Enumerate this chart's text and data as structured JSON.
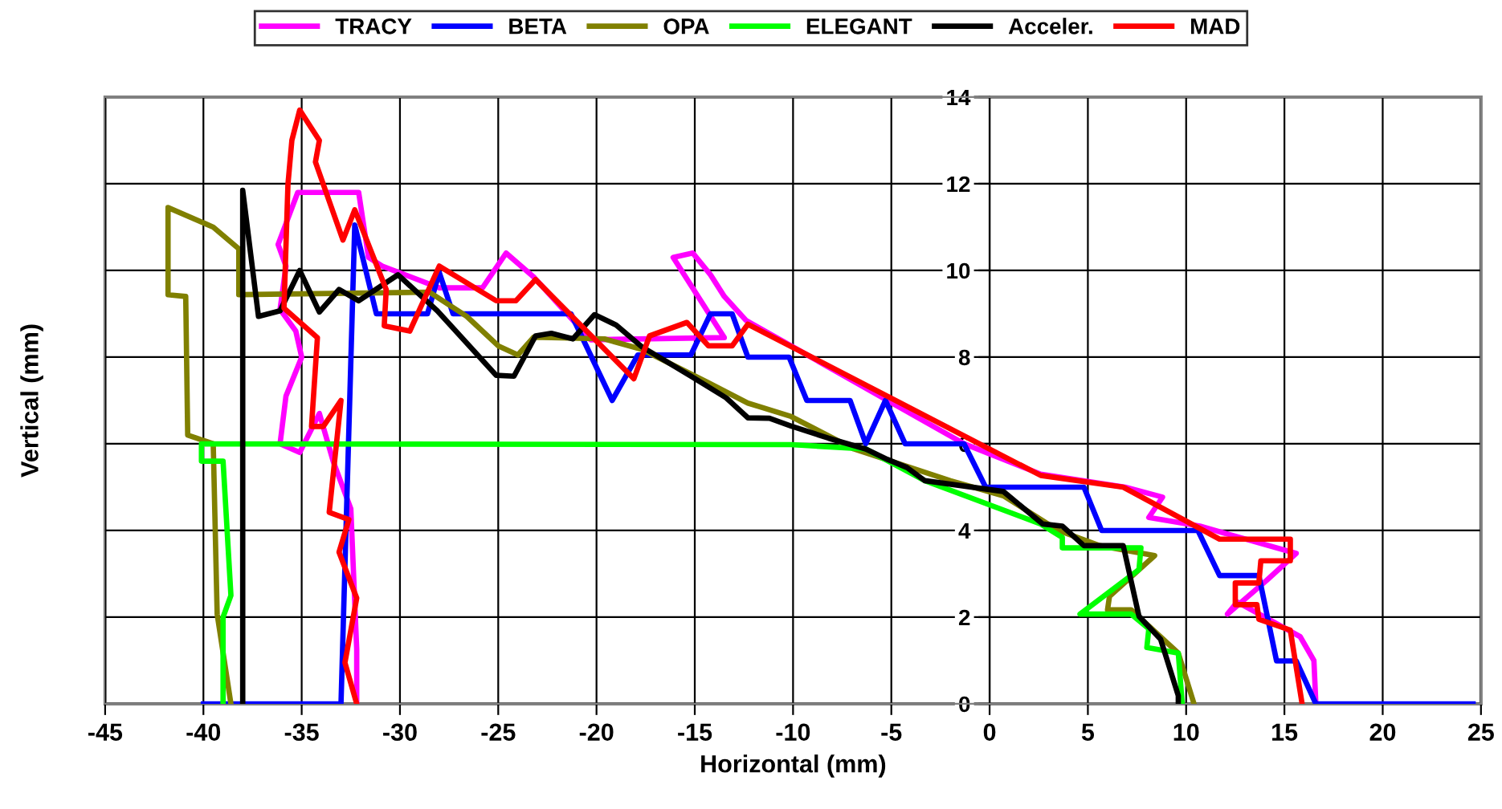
{
  "chart_data": {
    "type": "line",
    "xlabel": "Horizontal (mm)",
    "ylabel": "Vertical (mm)",
    "xlim": [
      -45,
      25
    ],
    "xticks": [
      -45,
      -40,
      -35,
      -30,
      -25,
      -20,
      -15,
      -10,
      -5,
      0,
      5,
      10,
      15,
      20,
      25
    ],
    "ylim": [
      0,
      14
    ],
    "yticks": [
      0,
      2,
      4,
      6,
      8,
      10,
      12,
      14
    ],
    "grid": true,
    "legend": "top",
    "marker": "none",
    "line_style": "solid",
    "series": [
      {
        "name": "TRACY",
        "color": "#ff00ff",
        "x": [
          -32.2,
          -32.2,
          -32.5,
          -33.4,
          -34.1,
          -35.1,
          -36.1,
          -35.8,
          -35.0,
          -35.3,
          -36.1,
          -35.8,
          -36.2,
          -35.2,
          -32.1,
          -31.6,
          -30.9,
          -28.0,
          -25.8,
          -24.6,
          -23.2,
          -20.3,
          -13.5,
          -16.1,
          -15.1,
          -14.2,
          -13.5,
          -12.4,
          -1.3,
          2.6,
          6.9,
          8.8,
          8.1,
          10.7,
          15.6,
          14.1,
          12.1,
          12.6,
          15.8,
          16.5,
          16.6
        ],
        "values": [
          0,
          1.26,
          4.5,
          5.6,
          6.7,
          5.8,
          6.0,
          7.1,
          8.0,
          8.6,
          9.1,
          10.1,
          10.6,
          11.8,
          11.8,
          10.3,
          10.1,
          9.6,
          9.6,
          10.4,
          9.85,
          8.4,
          8.45,
          10.3,
          10.4,
          9.9,
          9.4,
          8.85,
          6.0,
          5.3,
          5.0,
          4.77,
          4.3,
          4.1,
          3.47,
          2.85,
          2.07,
          2.35,
          1.55,
          1.0,
          0
        ]
      },
      {
        "name": "BETA",
        "color": "#0000ff",
        "x": [
          -40.0,
          -33.0,
          -32.3,
          -31.2,
          -28.6,
          -28.0,
          -27.3,
          -21.3,
          -19.2,
          -17.9,
          -15.2,
          -14.2,
          -13.1,
          -12.3,
          -10.2,
          -9.3,
          -7.1,
          -6.3,
          -5.3,
          -4.3,
          -1.3,
          -0.2,
          4.8,
          5.7,
          10.6,
          11.7,
          13.7,
          14.6,
          15.6,
          16.6,
          24.6
        ],
        "values": [
          0,
          0,
          11.05,
          9.0,
          9.0,
          9.95,
          9.0,
          9.0,
          7.0,
          8.05,
          8.05,
          9.0,
          9.0,
          8.0,
          8.0,
          7.0,
          7.0,
          6.0,
          7.0,
          6.0,
          6.0,
          5.0,
          5.0,
          4.0,
          4.0,
          2.96,
          2.96,
          0.99,
          0.99,
          0,
          0
        ]
      },
      {
        "name": "OPA",
        "color": "#808000",
        "x": [
          -38.6,
          -39.3,
          -39.5,
          -40.8,
          -40.9,
          -41.8,
          -41.8,
          -39.5,
          -38.2,
          -38.2,
          -28.5,
          -26.6,
          -25.0,
          -24.0,
          -23.2,
          -19.6,
          -17.7,
          -14.4,
          -12.3,
          -10.1,
          -6.9,
          -2.0,
          0.7,
          3.5,
          5.6,
          8.4,
          6.1,
          6.0,
          7.2,
          9.6,
          10.4
        ],
        "values": [
          0,
          2.07,
          6.0,
          6.2,
          9.4,
          9.44,
          11.45,
          11.0,
          10.5,
          9.44,
          9.5,
          8.94,
          8.26,
          8.05,
          8.46,
          8.42,
          8.18,
          7.43,
          6.94,
          6.63,
          5.88,
          5.15,
          4.8,
          4.0,
          3.65,
          3.42,
          2.48,
          2.17,
          2.17,
          1.17,
          0
        ]
      },
      {
        "name": "ELEGANT",
        "color": "#00ff00",
        "x": [
          -39.0,
          -39.0,
          -38.6,
          -39.0,
          -40.1,
          -40.1,
          -10.1,
          -6.3,
          -3.3,
          2.6,
          3.7,
          3.7,
          7.7,
          7.6,
          4.6,
          7.2,
          8.1,
          8.0,
          9.6,
          9.8
        ],
        "values": [
          0,
          2.0,
          2.5,
          5.6,
          5.6,
          6.0,
          5.98,
          5.88,
          5.15,
          4.15,
          3.84,
          3.6,
          3.6,
          3.1,
          2.07,
          2.07,
          1.73,
          1.3,
          1.17,
          0
        ]
      },
      {
        "name": "Acceler.",
        "color": "#000000",
        "x": [
          -38.0,
          -38.0,
          -37.2,
          -36.1,
          -35.1,
          -34.1,
          -33.1,
          -32.1,
          -30.1,
          -28.1,
          -25.1,
          -24.2,
          -23.1,
          -22.3,
          -21.2,
          -20.1,
          -19.0,
          -17.7,
          -15.2,
          -13.4,
          -12.3,
          -11.2,
          -10.1,
          -8.2,
          -6.3,
          -5.2,
          -4.2,
          -3.3,
          0.7,
          2.7,
          3.7,
          4.8,
          6.8,
          7.6,
          8.7,
          9.6,
          9.6
        ],
        "values": [
          0,
          11.85,
          8.94,
          9.07,
          10.0,
          9.04,
          9.56,
          9.3,
          9.9,
          9.07,
          7.58,
          7.56,
          8.49,
          8.55,
          8.42,
          8.98,
          8.74,
          8.24,
          7.56,
          7.06,
          6.6,
          6.59,
          6.41,
          6.13,
          5.88,
          5.64,
          5.45,
          5.15,
          4.9,
          4.15,
          4.1,
          3.65,
          3.65,
          2.02,
          1.49,
          0.19,
          0
        ]
      },
      {
        "name": "MAD",
        "color": "#ff0000",
        "x": [
          -32.2,
          -32.8,
          -32.2,
          -33.1,
          -32.6,
          -33.6,
          -33.0,
          -33.9,
          -34.5,
          -34.2,
          -35.9,
          -35.7,
          -35.5,
          -35.1,
          -34.1,
          -34.3,
          -32.9,
          -32.3,
          -30.7,
          -30.8,
          -29.5,
          -28.0,
          -25.1,
          -24.1,
          -23.1,
          -18.1,
          -17.3,
          -15.4,
          -14.3,
          -13.1,
          -12.3,
          2.6,
          6.8,
          11.7,
          15.3,
          15.3,
          13.8,
          13.7,
          12.5,
          12.5,
          13.6,
          13.7,
          15.3,
          15.9
        ],
        "values": [
          0,
          0.95,
          2.44,
          3.5,
          4.25,
          4.42,
          7.0,
          6.4,
          6.4,
          8.45,
          9.13,
          11.98,
          13.0,
          13.7,
          13.0,
          12.5,
          10.7,
          11.4,
          9.56,
          8.72,
          8.6,
          10.1,
          9.3,
          9.3,
          9.79,
          7.5,
          8.49,
          8.8,
          8.26,
          8.26,
          8.76,
          5.27,
          5.0,
          3.8,
          3.8,
          3.3,
          3.3,
          2.79,
          2.79,
          2.29,
          2.29,
          1.95,
          1.7,
          0
        ]
      }
    ]
  }
}
